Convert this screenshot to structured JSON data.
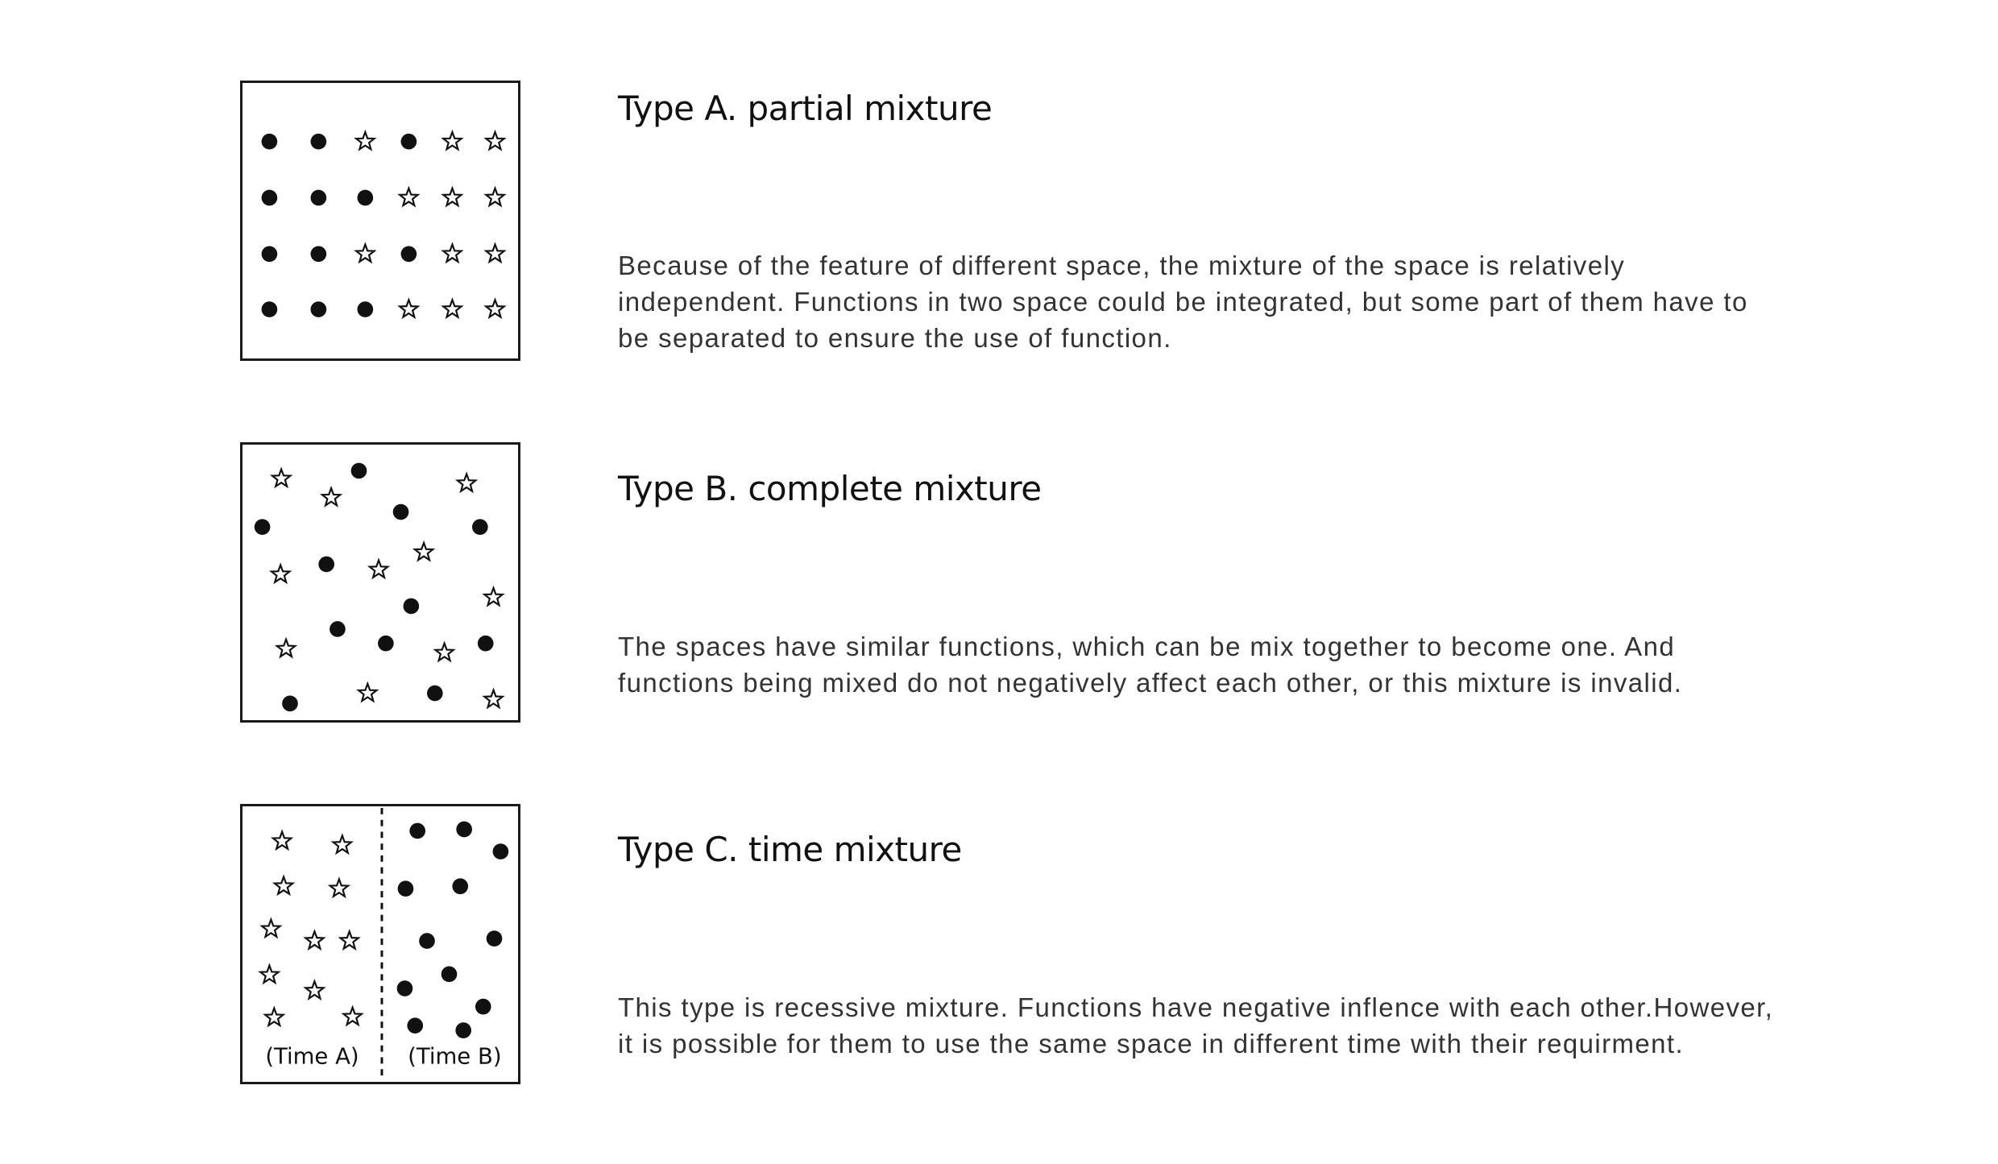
{
  "sections": [
    {
      "id": "a",
      "title": "Type A. partial mixture",
      "description": "Because of the feature of different space, the mixture of the space is relatively independent. Functions in two space could be integrated, but some part of them have to be separated to ensure the use of function.",
      "layout": "grid",
      "grid_rows": [
        [
          "dot",
          "dot",
          "star",
          "dot",
          "star",
          "star"
        ],
        [
          "dot",
          "dot",
          "dot",
          "star",
          "star",
          "star"
        ],
        [
          "dot",
          "dot",
          "star",
          "dot",
          "star",
          "star"
        ],
        [
          "dot",
          "dot",
          "dot",
          "star",
          "star",
          "star"
        ]
      ]
    },
    {
      "id": "b",
      "title": "Type B. complete mixture",
      "description": "The spaces have similar functions, which can be mix together to become one. And functions being mixed do not negatively affect each other, or this mixture is invalid.",
      "layout": "scattered"
    },
    {
      "id": "c",
      "title": "Type C. time mixture",
      "description": "This type is recessive mixture. Functions have negative inflence with each other.However, it is possible for them  to use the same space in different time with their requirment.",
      "layout": "split",
      "left_label": "(Time A)",
      "right_label": "(Time B)"
    }
  ],
  "icons": {
    "filled": "dot-icon",
    "outline": "star-icon"
  }
}
